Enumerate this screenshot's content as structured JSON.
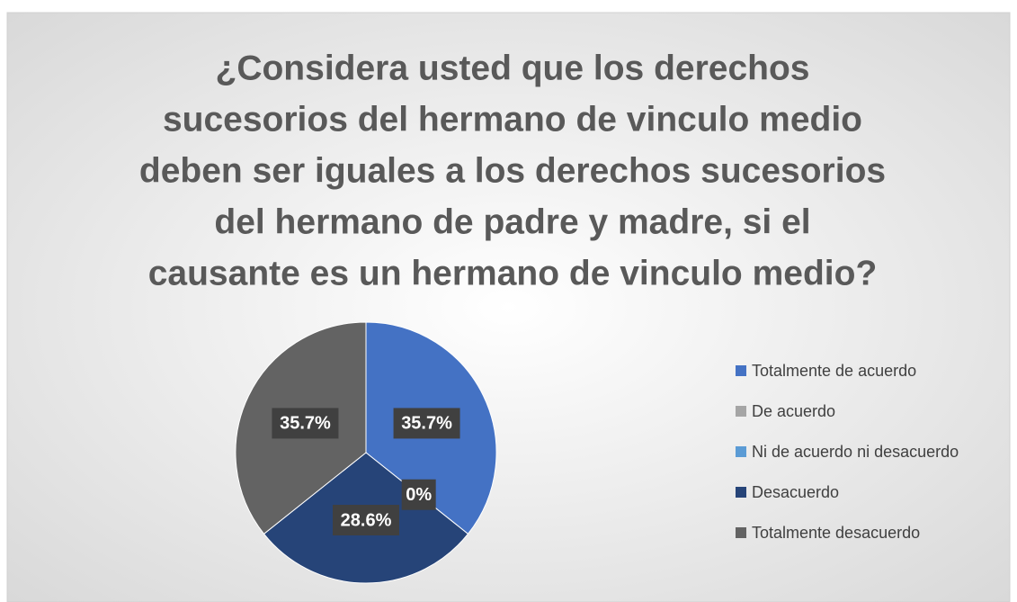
{
  "chart_data": {
    "type": "pie",
    "title": [
      "¿Considera usted que los derechos",
      "sucesorios del hermano de vinculo medio",
      "deben ser iguales a los derechos sucesorios",
      "del hermano de padre y madre, si el",
      "causante es un hermano de vinculo medio?"
    ],
    "categories": [
      "Totalmente de acuerdo",
      "De acuerdo",
      "Ni de acuerdo ni desacuerdo",
      "Desacuerdo",
      "Totalmente desacuerdo"
    ],
    "values": [
      35.7,
      0,
      0,
      28.6,
      35.7
    ],
    "value_labels": [
      "35.7%",
      "0%",
      null,
      "28.6%",
      "35.7%"
    ],
    "colors": [
      "#4472c4",
      "#a5a5a5",
      "#5b9bd5",
      "#264478",
      "#636363"
    ],
    "legend": "right"
  }
}
